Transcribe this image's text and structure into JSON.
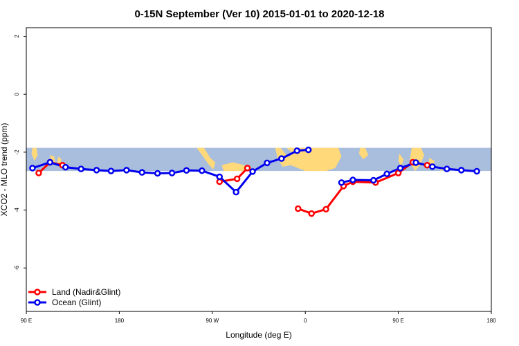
{
  "chart_data": {
    "type": "line",
    "title": "0-15N September (Ver 10)   2015-01-01 to 2020-12-18",
    "xlabel": "Longitude (deg E)",
    "ylabel": "XCO2 - MLO trend (ppm)",
    "xlim": [
      90,
      540
    ],
    "ylim": [
      -7.5,
      2.3
    ],
    "x_ticks": [
      {
        "value": 90,
        "label": "90 E"
      },
      {
        "value": 180,
        "label": "180"
      },
      {
        "value": 270,
        "label": "90 W"
      },
      {
        "value": 360,
        "label": "0"
      },
      {
        "value": 450,
        "label": "90 E"
      },
      {
        "value": 540,
        "label": "180"
      }
    ],
    "y_ticks": [
      {
        "value": 2,
        "label": "2"
      },
      {
        "value": 0,
        "label": "0"
      },
      {
        "value": -2,
        "label": "-2"
      },
      {
        "value": -4,
        "label": "-4"
      },
      {
        "value": -6,
        "label": "-6"
      }
    ],
    "map_band": {
      "lat_range_ppm": [
        -1.85,
        -2.65
      ],
      "ocean_color": "#a8bedc",
      "land_color": "#ffd97a"
    },
    "legend_position": "bottom-left",
    "series": [
      {
        "name": "Land (Nadir&Glint)",
        "color": "#ff0000",
        "segments": [
          [
            [
              102,
              -2.72
            ],
            [
              113,
              -2.35
            ],
            [
              125,
              -2.45
            ]
          ],
          [
            [
              277,
              -3.02
            ],
            [
              294,
              -2.92
            ],
            [
              304,
              -2.55
            ]
          ],
          [
            [
              353,
              -3.95
            ],
            [
              366,
              -4.12
            ],
            [
              380,
              -3.97
            ],
            [
              397,
              -3.17
            ],
            [
              406,
              -3.02
            ],
            [
              428,
              -3.05
            ],
            [
              450,
              -2.72
            ],
            [
              464,
              -2.35
            ],
            [
              478,
              -2.45
            ]
          ]
        ]
      },
      {
        "name": "Ocean (Glint)",
        "color": "#0000ee",
        "segments": [
          [
            [
              96,
              -2.55
            ],
            [
              113,
              -2.35
            ],
            [
              128,
              -2.52
            ],
            [
              143,
              -2.58
            ],
            [
              158,
              -2.62
            ],
            [
              172,
              -2.65
            ],
            [
              187,
              -2.62
            ],
            [
              202,
              -2.7
            ],
            [
              217,
              -2.73
            ],
            [
              231,
              -2.72
            ],
            [
              245,
              -2.63
            ],
            [
              260,
              -2.64
            ],
            [
              277,
              -2.85
            ],
            [
              293,
              -3.38
            ],
            [
              309,
              -2.67
            ],
            [
              323,
              -2.37
            ],
            [
              337,
              -2.22
            ],
            [
              352,
              -1.95
            ],
            [
              363,
              -1.92
            ]
          ],
          [
            [
              395,
              -3.05
            ],
            [
              406,
              -2.96
            ],
            [
              426,
              -2.97
            ],
            [
              439,
              -2.75
            ],
            [
              452,
              -2.55
            ],
            [
              467,
              -2.36
            ],
            [
              483,
              -2.5
            ],
            [
              497,
              -2.58
            ],
            [
              511,
              -2.62
            ],
            [
              526,
              -2.66
            ]
          ]
        ]
      }
    ]
  }
}
